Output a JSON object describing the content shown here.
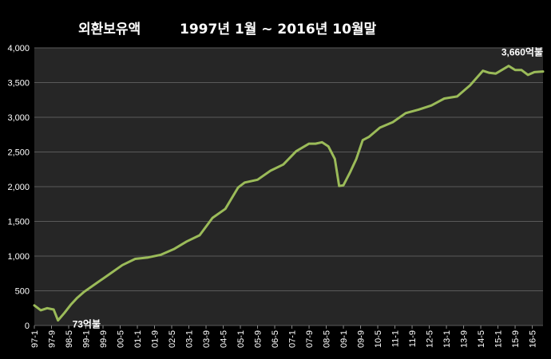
{
  "title": {
    "main": "외환보유액",
    "range": "1997년 1월 ~ 2016년 10월말"
  },
  "colors": {
    "background": "#000000",
    "plot_area": "#262626",
    "line": "#9BBB59",
    "gridline": "#5a5a5a",
    "text": "#ffffff"
  },
  "chart_data": {
    "type": "line",
    "title": "외환보유액",
    "subtitle": "1997년 1월 ~ 2016년 10월말",
    "xlabel": "",
    "ylabel": "",
    "ylim": [
      0,
      4000
    ],
    "yticks": [
      0,
      500,
      1000,
      1500,
      2000,
      2500,
      3000,
      3500,
      4000
    ],
    "ytick_labels": [
      "0",
      "500",
      "1,000",
      "1,500",
      "2,000",
      "2,500",
      "3,000",
      "3,500",
      "4,000"
    ],
    "xtick_labels": [
      "97-1",
      "97-9",
      "98-5",
      "99-1",
      "99-9",
      "00-5",
      "01-1",
      "01-9",
      "02-5",
      "03-1",
      "03-9",
      "04-5",
      "05-1",
      "05-9",
      "06-5",
      "07-1",
      "07-9",
      "08-5",
      "09-1",
      "09-9",
      "10-5",
      "11-1",
      "11-9",
      "12-5",
      "13-1",
      "13-9",
      "14-5",
      "15-1",
      "15-9",
      "16-5"
    ],
    "grid": true,
    "legend": "none",
    "series": [
      {
        "x": [
          "97-1",
          "97-4",
          "97-7",
          "97-10",
          "97-12",
          "98-3",
          "98-6",
          "98-9",
          "98-12",
          "99-6",
          "99-12",
          "00-6",
          "00-12",
          "01-6",
          "01-12",
          "02-6",
          "02-12",
          "03-6",
          "03-12",
          "04-6",
          "04-12",
          "05-3",
          "05-9",
          "06-3",
          "06-9",
          "07-3",
          "07-9",
          "07-12",
          "08-3",
          "08-6",
          "08-9",
          "08-11",
          "09-1",
          "09-4",
          "09-7",
          "09-10",
          "10-1",
          "10-6",
          "10-12",
          "11-6",
          "11-12",
          "12-6",
          "12-12",
          "13-6",
          "13-12",
          "14-6",
          "14-9",
          "14-12",
          "15-6",
          "15-9",
          "15-12",
          "16-3",
          "16-6",
          "16-10"
        ],
        "values": [
          290,
          220,
          250,
          230,
          73,
          180,
          300,
          400,
          480,
          610,
          740,
          870,
          960,
          980,
          1020,
          1100,
          1210,
          1300,
          1550,
          1680,
          1990,
          2060,
          2100,
          2230,
          2320,
          2510,
          2620,
          2620,
          2640,
          2580,
          2400,
          2010,
          2020,
          2200,
          2400,
          2670,
          2720,
          2850,
          2930,
          3060,
          3110,
          3170,
          3270,
          3300,
          3460,
          3670,
          3640,
          3630,
          3740,
          3680,
          3680,
          3610,
          3650,
          3660
        ]
      }
    ],
    "annotations": [
      {
        "text": "73억불",
        "x": "97-12",
        "y": 73
      },
      {
        "text": "3,660억불",
        "x": "16-10",
        "y": 3660
      }
    ]
  }
}
